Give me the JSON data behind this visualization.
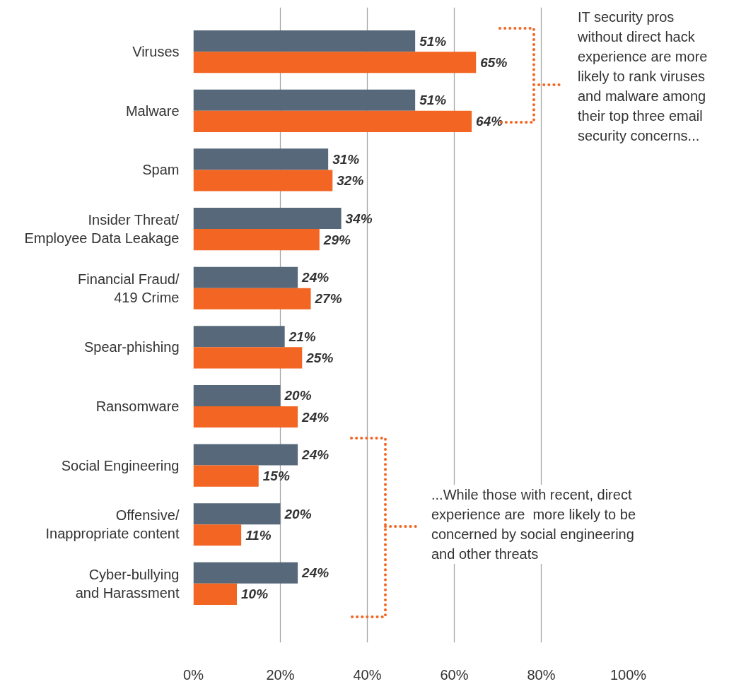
{
  "chart_data": {
    "type": "bar",
    "orientation": "horizontal",
    "categories": [
      "Viruses",
      "Malware",
      "Spam",
      "Insider Threat/\nEmployee Data Leakage",
      "Financial Fraud/\n419 Crime",
      "Spear-phishing",
      "Ransomware",
      "Social Engineering",
      "Offensive/\nInappropriate content",
      "Cyber-bullying\nand Harassment"
    ],
    "series": [
      {
        "color": "#566879",
        "values": [
          51,
          51,
          31,
          34,
          24,
          21,
          20,
          24,
          20,
          24
        ],
        "value_labels": [
          "51%",
          "51%",
          "31%",
          "34%",
          "24%",
          "21%",
          "20%",
          "24%",
          "20%",
          "24%"
        ]
      },
      {
        "color": "#f26522",
        "values": [
          65,
          64,
          32,
          29,
          27,
          25,
          24,
          15,
          11,
          10
        ],
        "value_labels": [
          "65%",
          "64%",
          "32%",
          "29%",
          "27%",
          "25%",
          "24%",
          "15%",
          "11%",
          "10%"
        ]
      }
    ],
    "xlim": [
      0,
      100
    ],
    "xticks": [
      {
        "value": 0,
        "label": "0%"
      },
      {
        "value": 20,
        "label": "20%"
      },
      {
        "value": 40,
        "label": "40%"
      },
      {
        "value": 60,
        "label": "60%"
      },
      {
        "value": 80,
        "label": "80%"
      },
      {
        "value": 100,
        "label": "100%"
      }
    ],
    "grid": "x",
    "annotations": [
      "IT security pros\nwithout direct hack\nexperience are more\nlikely to rank viruses\nand malware among\ntheir top three email\nsecurity concerns...",
      "...While those with recent, direct\nexperience are  more likely to be\nconcerned by social engineering\nand other threats"
    ]
  }
}
